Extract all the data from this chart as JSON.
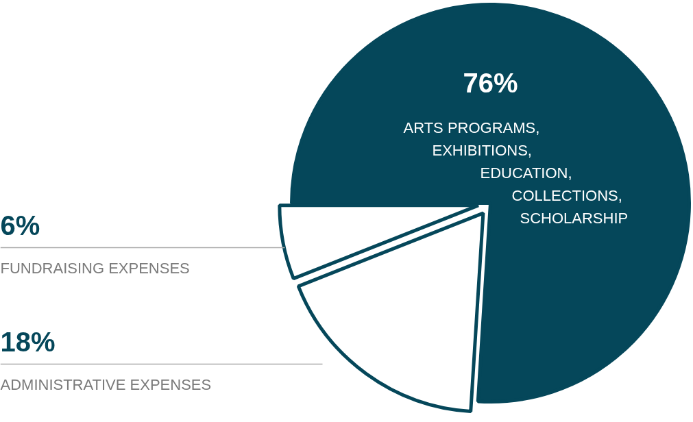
{
  "chart_data": {
    "type": "pie",
    "categories": [
      "ARTS PROGRAMS,\nEXHIBITIONS,\nEDUCATION,\nCOLLECTIONS,\nSCHOLARSHIP",
      "ADMINISTRATIVE EXPENSES",
      "FUNDRAISING EXPENSES"
    ],
    "values": [
      76,
      18,
      6
    ],
    "colors": [
      "#05475a",
      "#ffffff",
      "#ffffff"
    ],
    "value_labels": [
      "76%",
      "18%",
      "6%"
    ]
  }
}
